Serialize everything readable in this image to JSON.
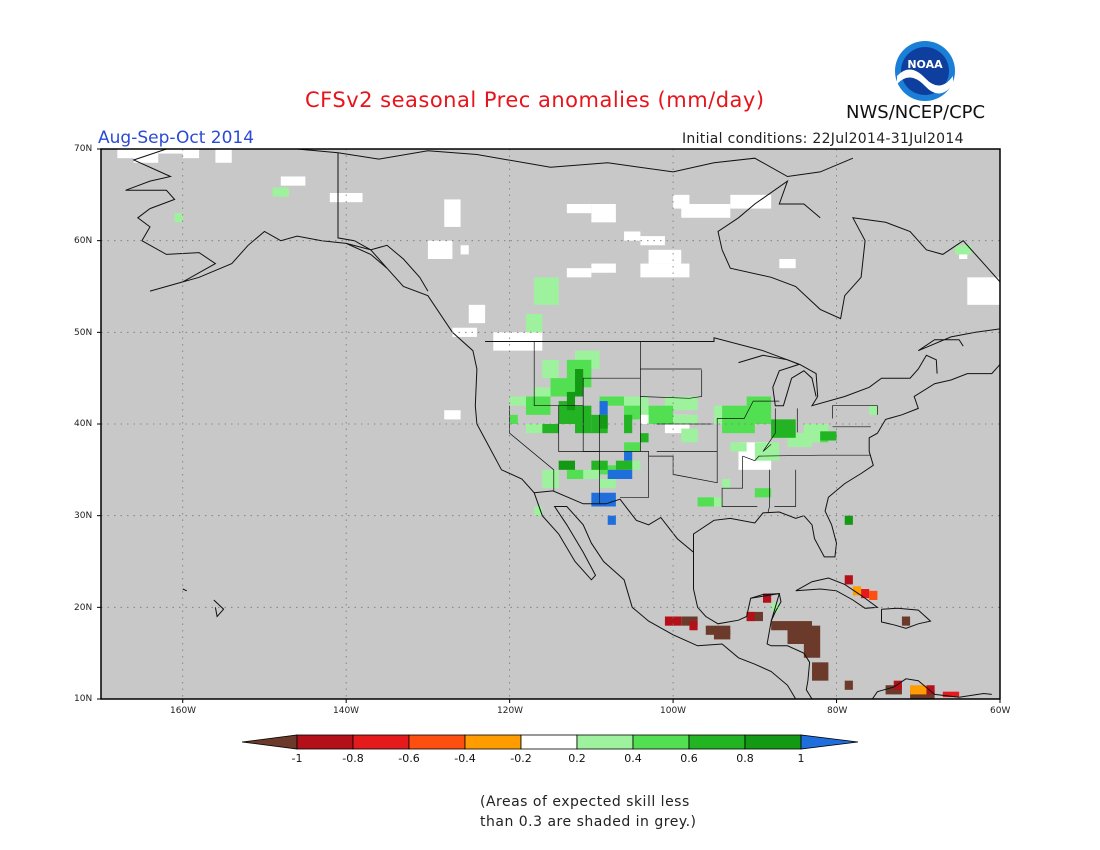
{
  "header": {
    "title": "CFSv2 seasonal Prec anomalies (mm/day)",
    "season": "Aug-Sep-Oct 2014",
    "initial_conditions": "Initial conditions: 22Jul2014-31Jul2014",
    "organization": "NWS/NCEP/CPC",
    "logo_text": "NOAA"
  },
  "map": {
    "region": "North America",
    "lon_range": [
      -170,
      -60
    ],
    "lat_range": [
      10,
      70
    ],
    "lat_labels": [
      "70N",
      "60N",
      "50N",
      "40N",
      "30N",
      "20N",
      "10N"
    ],
    "lon_labels": [
      "160W",
      "140W",
      "120W",
      "100W",
      "80W",
      "60W"
    ],
    "background_color": "#c8c8c8",
    "gridlines": "dotted"
  },
  "colorbar": {
    "labels": [
      "-1",
      "-0.8",
      "-0.6",
      "-0.4",
      "-0.2",
      "0.2",
      "0.4",
      "0.6",
      "0.8",
      "1"
    ],
    "colors": [
      "#6b3a2a",
      "#b4101a",
      "#e41a1c",
      "#ff4f10",
      "#ff9c00",
      "#ffffff",
      "#9ef29e",
      "#52e052",
      "#22b422",
      "#149914",
      "#1e6fdc"
    ]
  },
  "note": {
    "line1": "(Areas of expected skill less",
    "line2": "than 0.3 are shaded in grey.)"
  }
}
